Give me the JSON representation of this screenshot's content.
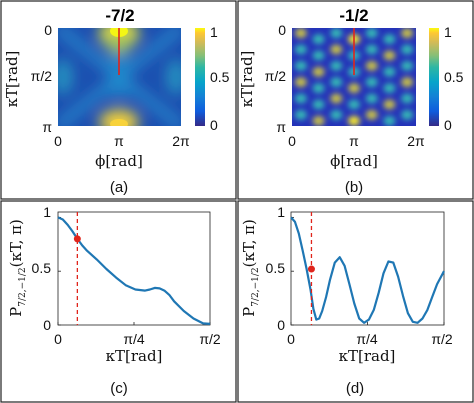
{
  "chart_data": [
    {
      "panel": "(a)",
      "type": "heatmap",
      "title": "-7/2",
      "xlabel": "ϕ[rad]",
      "ylabel": "κT[rad]",
      "xticks": [
        "0",
        "π",
        "2π"
      ],
      "yticks": [
        "0",
        "π/2",
        "π"
      ],
      "xlim": [
        0,
        6.2832
      ],
      "ylim": [
        0,
        3.1416
      ],
      "colorbar_ticks": [
        "1",
        "0.5",
        "0"
      ],
      "colorbar_range": [
        0,
        1
      ],
      "marker_line": {
        "x": 3.1416,
        "y_from": 0,
        "y_to": 1.2,
        "color": "#e0241b"
      },
      "peaks": [
        {
          "x": 3.1416,
          "y": 0.15,
          "value": 1.0
        },
        {
          "x": 3.1416,
          "y": 3.0,
          "value": 0.9
        }
      ]
    },
    {
      "panel": "(b)",
      "type": "heatmap",
      "title": "-1/2",
      "xlabel": "ϕ[rad]",
      "ylabel": "κT[rad]",
      "xticks": [
        "0",
        "π",
        "2π"
      ],
      "yticks": [
        "0",
        "π/2",
        "π"
      ],
      "xlim": [
        0,
        6.2832
      ],
      "ylim": [
        0,
        3.1416
      ],
      "colorbar_ticks": [
        "1",
        "0.5",
        "0"
      ],
      "colorbar_range": [
        0,
        1
      ],
      "marker_line": {
        "x": 3.1416,
        "y_from": 0,
        "y_to": 1.2,
        "color": "#e0241b"
      }
    },
    {
      "panel": "(c)",
      "type": "line",
      "xlabel": "κT[rad]",
      "ylabel": "P",
      "ylabel_sub": "7/2,−1/2",
      "ylabel_arg": "(κT, π)",
      "xticks": [
        "0",
        "π/4",
        "π/2"
      ],
      "yticks": [
        "0",
        "0.5",
        "1"
      ],
      "xlim": [
        0,
        1.5708
      ],
      "ylim": [
        0,
        1.05
      ],
      "series": [
        {
          "color": "#1f77b4",
          "x": [
            0,
            0.05,
            0.1,
            0.15,
            0.2,
            0.25,
            0.3,
            0.4,
            0.5,
            0.6,
            0.7,
            0.8,
            0.9,
            0.95,
            1.0,
            1.05,
            1.1,
            1.15,
            1.2,
            1.3,
            1.4,
            1.5,
            1.5708
          ],
          "y": [
            1.0,
            0.98,
            0.93,
            0.87,
            0.8,
            0.74,
            0.69,
            0.61,
            0.52,
            0.44,
            0.37,
            0.33,
            0.32,
            0.33,
            0.345,
            0.34,
            0.32,
            0.28,
            0.22,
            0.13,
            0.06,
            0.015,
            0.01
          ]
        }
      ],
      "vline": {
        "x": 0.2,
        "color": "#e0241b"
      },
      "point": {
        "x": 0.2,
        "y": 0.8,
        "color": "#e0241b"
      }
    },
    {
      "panel": "(d)",
      "type": "line",
      "xlabel": "κT[rad]",
      "ylabel": "P",
      "ylabel_sub": "7/2,−1/2",
      "ylabel_arg": "(κT, π)",
      "xticks": [
        "0",
        "π/4",
        "π/2"
      ],
      "yticks": [
        "0",
        "0.5",
        "1"
      ],
      "xlim": [
        0,
        1.5708
      ],
      "ylim": [
        0,
        1.05
      ],
      "series": [
        {
          "color": "#1f77b4",
          "x": [
            0,
            0.04,
            0.08,
            0.12,
            0.16,
            0.2,
            0.23,
            0.26,
            0.29,
            0.32,
            0.36,
            0.4,
            0.45,
            0.5,
            0.55,
            0.6,
            0.65,
            0.7,
            0.75,
            0.8,
            0.85,
            0.9,
            0.95,
            1.0,
            1.05,
            1.1,
            1.15,
            1.2,
            1.25,
            1.3,
            1.35,
            1.4,
            1.45,
            1.5,
            1.5708
          ],
          "y": [
            1.0,
            0.96,
            0.85,
            0.69,
            0.52,
            0.33,
            0.15,
            0.05,
            0.06,
            0.13,
            0.26,
            0.42,
            0.58,
            0.63,
            0.55,
            0.38,
            0.2,
            0.06,
            0.02,
            0.05,
            0.14,
            0.3,
            0.48,
            0.59,
            0.58,
            0.45,
            0.27,
            0.11,
            0.03,
            0.02,
            0.06,
            0.14,
            0.26,
            0.38,
            0.5
          ]
        }
      ],
      "vline": {
        "x": 0.21,
        "color": "#e0241b"
      },
      "point": {
        "x": 0.21,
        "y": 0.52,
        "color": "#e0241b"
      }
    }
  ],
  "captions": {
    "a": "(a)",
    "b": "(b)",
    "c": "(c)",
    "d": "(d)"
  },
  "labels": {
    "phi": "ϕ[rad]",
    "kappaT": "κT[rad]",
    "P": "P",
    "P_sub": "7/2,−1/2",
    "P_arg": "(κT, π)"
  }
}
